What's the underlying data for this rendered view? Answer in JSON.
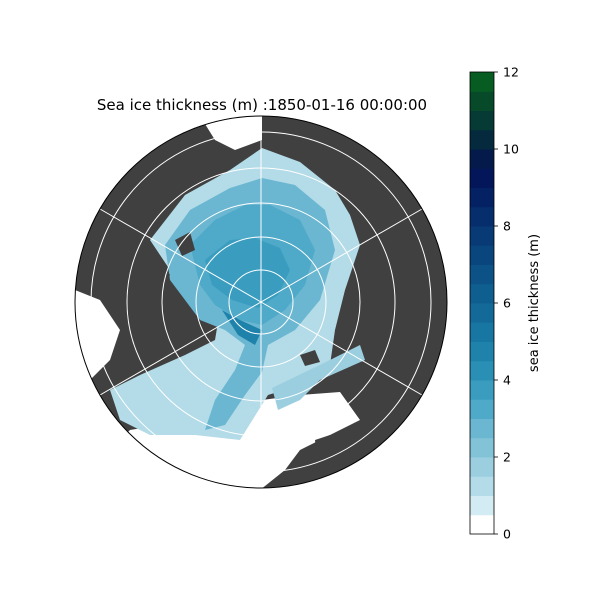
{
  "title": "Sea ice thickness (m) :1850-01-16 00:00:00",
  "colorbar": {
    "label": "sea ice thickness (m)",
    "min": 0,
    "max": 12,
    "step": 0.5,
    "ticks": [
      0,
      2,
      4,
      6,
      8,
      10,
      12
    ],
    "colors": [
      "#ffffff",
      "#d3ebf2",
      "#b3dbe8",
      "#9bcfe0",
      "#83c3d8",
      "#6bb7d1",
      "#4fa9c8",
      "#3a9dc0",
      "#2a8fb5",
      "#1f82ab",
      "#1876a2",
      "#136a99",
      "#0f5e90",
      "#0c5287",
      "#0a467e",
      "#083a75",
      "#062e6c",
      "#042263",
      "#03165a",
      "#041a4a",
      "#052a3e",
      "#063a34",
      "#074a2a",
      "#075c22",
      "#086e1a",
      "#087a10"
    ]
  },
  "map": {
    "projection": "north-polar-stereographic",
    "land_color": "#404040",
    "ocean_color": "#ffffff",
    "gridlines": true
  }
}
